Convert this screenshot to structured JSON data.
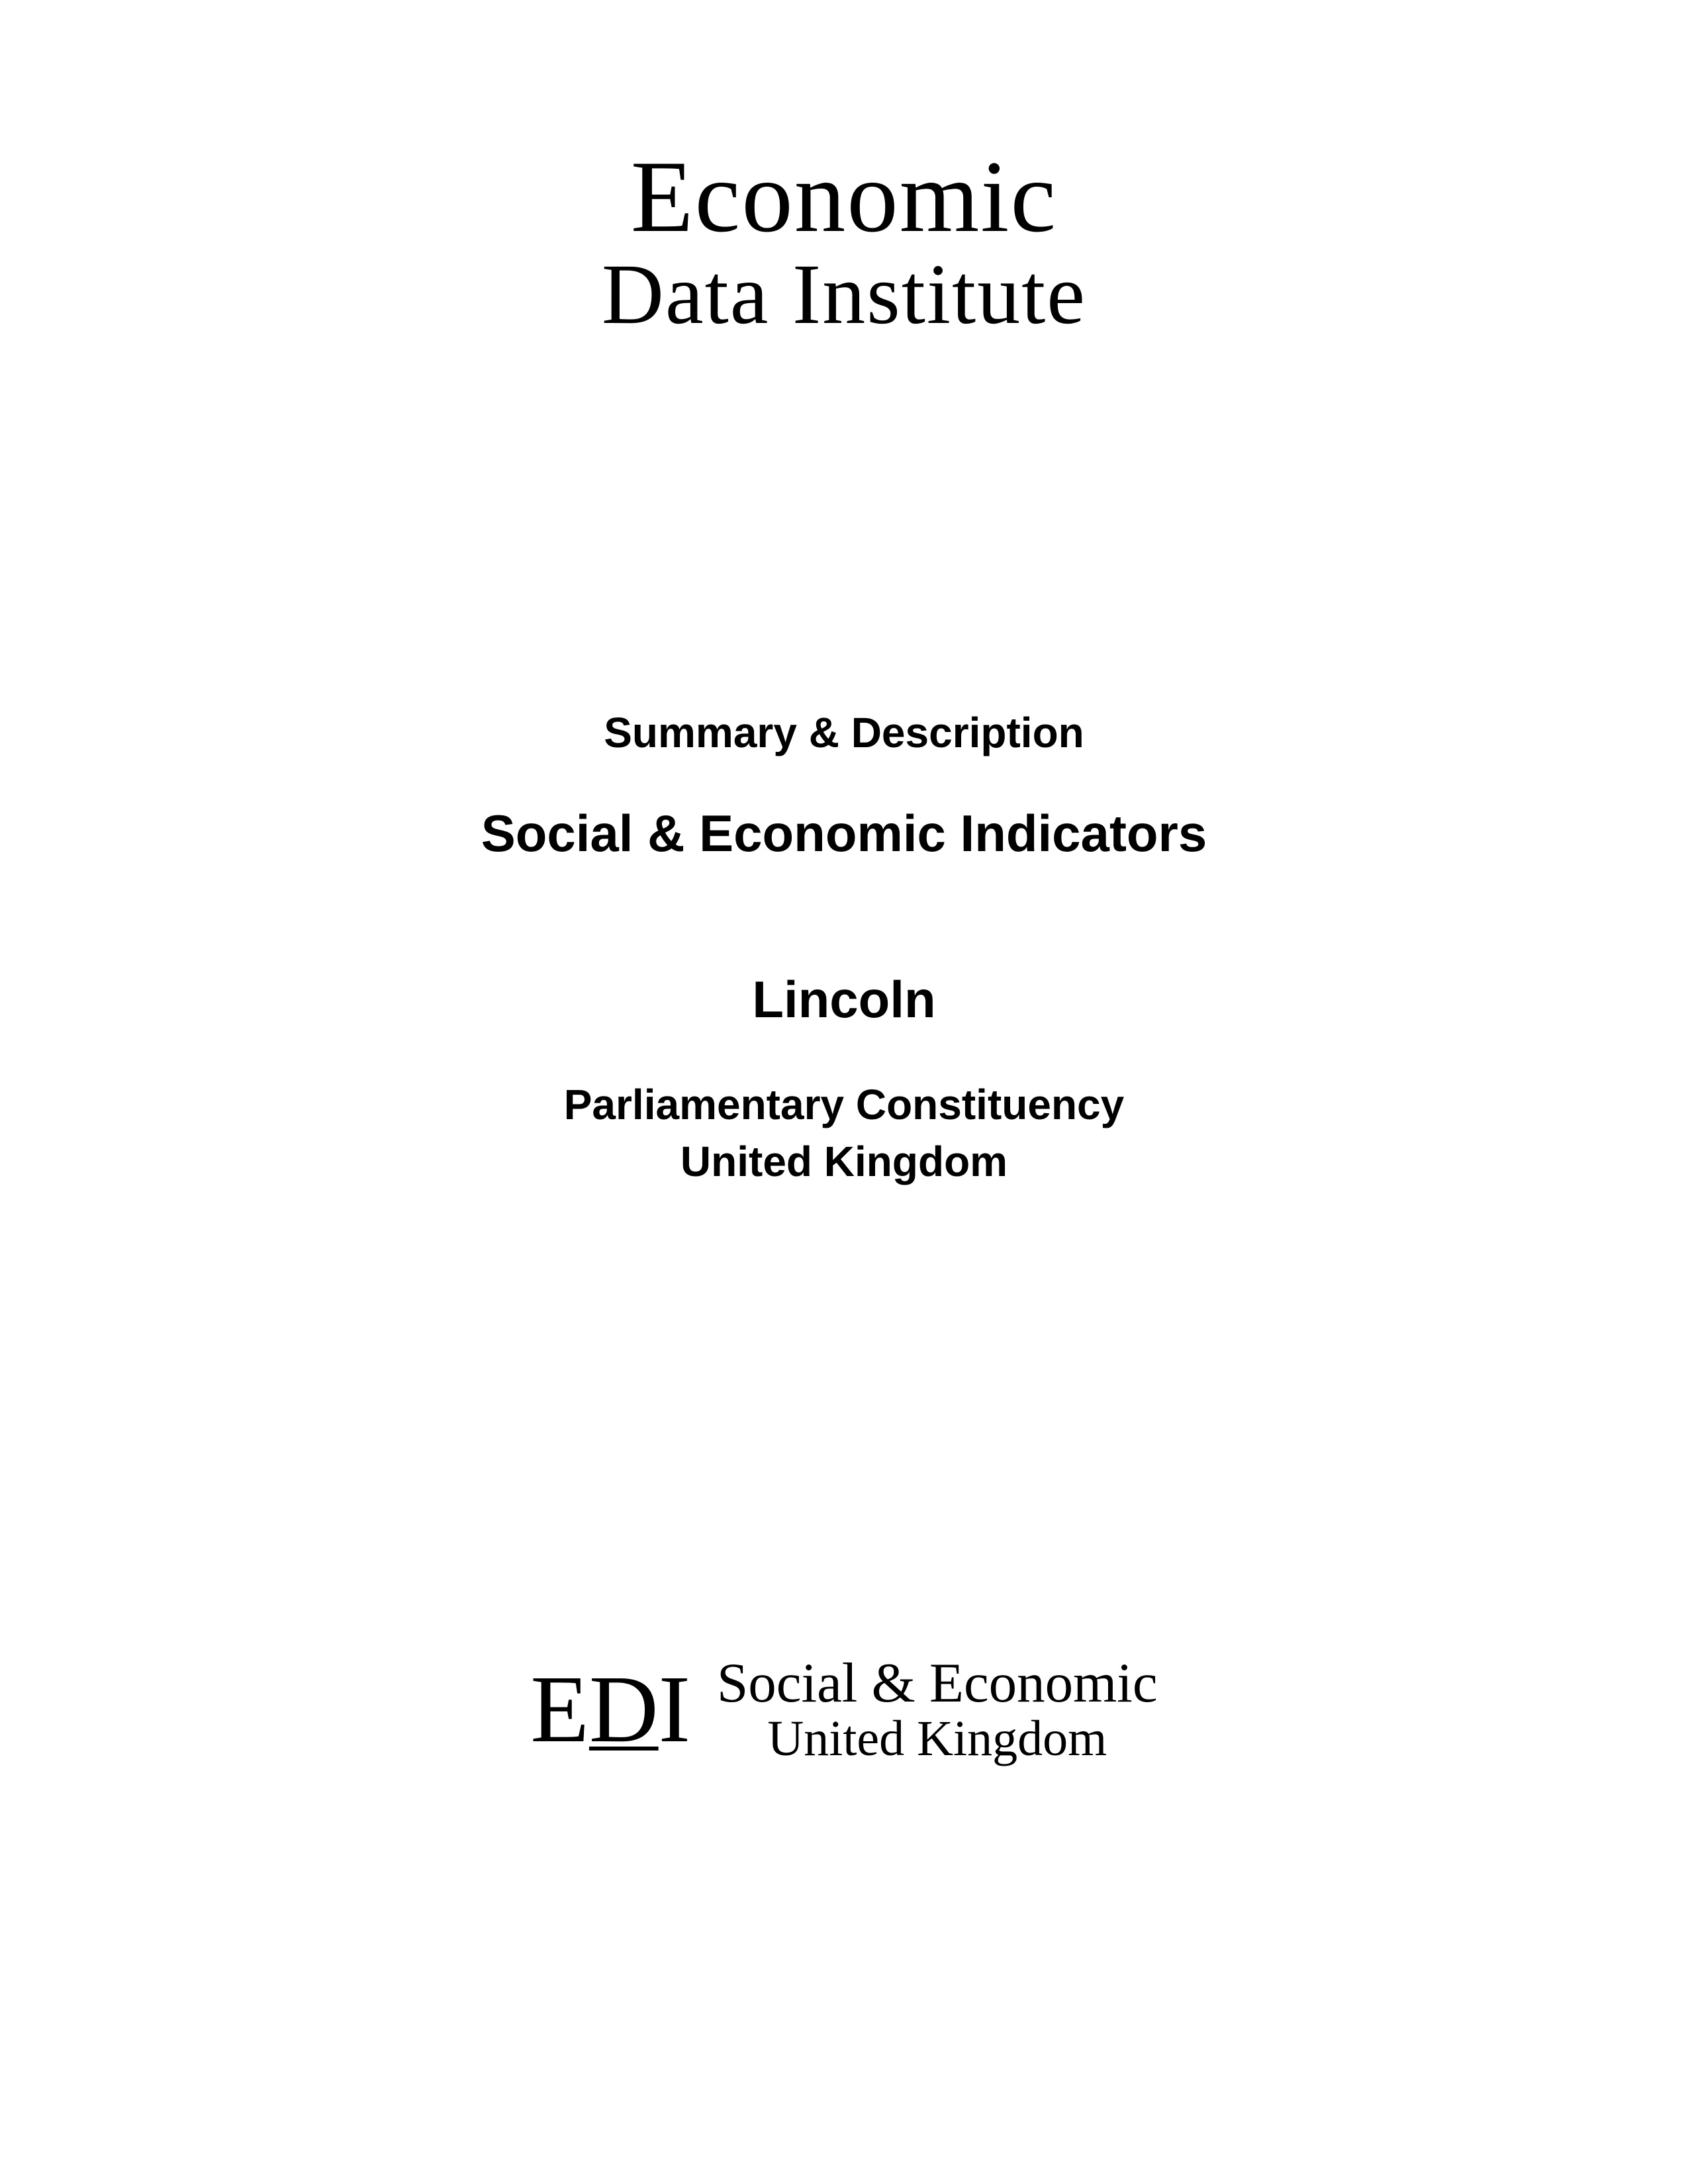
{
  "logo_top": {
    "line1": "Economic",
    "line2": "Data Institute"
  },
  "content": {
    "summary": "Summary & Description",
    "title": "Social & Economic Indicators",
    "location": "Lincoln",
    "subtitle_line1": "Parliamentary Constituency",
    "subtitle_line2": "United Kingdom"
  },
  "logo_bottom": {
    "abbr_e": "E",
    "abbr_d": "D",
    "abbr_i": "I",
    "line1": "Social & Economic",
    "line2": "United Kingdom"
  },
  "colors": {
    "background": "#ffffff",
    "text": "#000000"
  }
}
